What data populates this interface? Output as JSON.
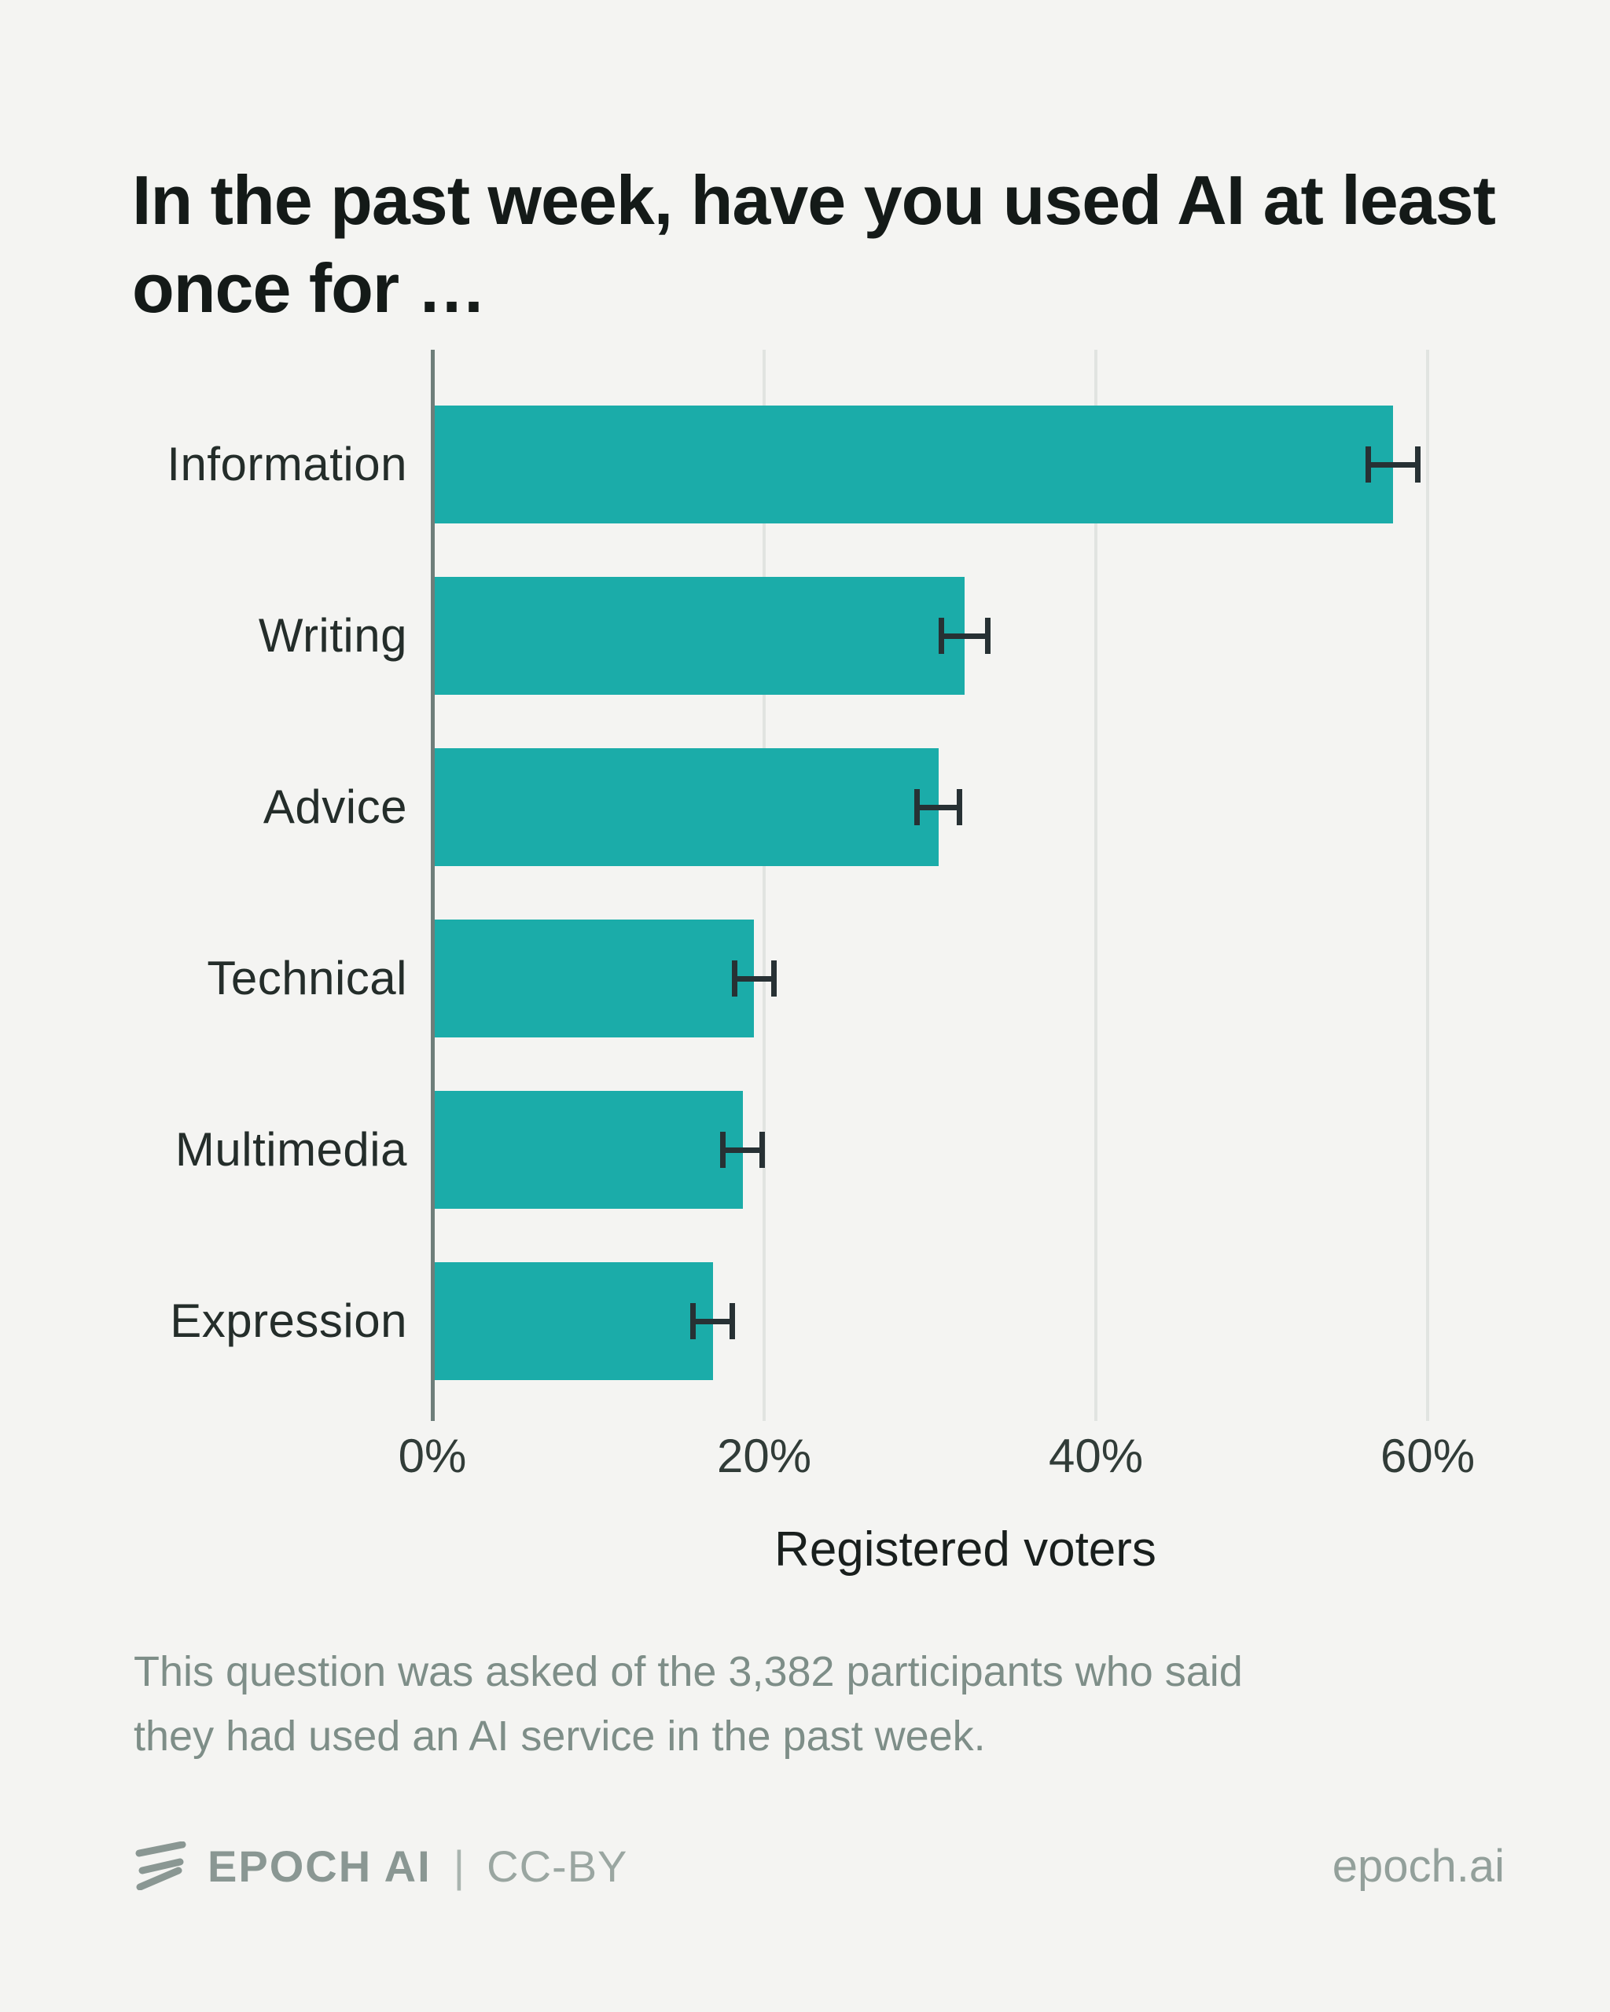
{
  "title": {
    "line1": "In the past week, have you used AI at least",
    "line2": "once for …"
  },
  "chart_data": {
    "type": "bar",
    "orientation": "horizontal",
    "title": "In the past week, have you used AI at least once for …",
    "categories": [
      "Information",
      "Writing",
      "Advice",
      "Technical",
      "Multimedia",
      "Expression"
    ],
    "values": [
      57.9,
      32.1,
      30.5,
      19.4,
      18.7,
      16.9
    ],
    "error_margins": [
      1.5,
      1.4,
      1.3,
      1.2,
      1.2,
      1.2
    ],
    "xlabel": "Registered voters",
    "xlim": [
      0,
      66.3
    ],
    "xticks": {
      "values": [
        0,
        20,
        40,
        60
      ],
      "labels": [
        "0%",
        "20%",
        "40%",
        "60%"
      ]
    },
    "grid": "vertical-gridlines",
    "legend": "none"
  },
  "footnote": {
    "line1": "This question was asked of the 3,382 participants who said",
    "line2": "they had used an AI service in the past week."
  },
  "footer": {
    "brand": "EPOCH AI",
    "divider": "|",
    "license": "CC-BY",
    "site": "epoch.ai"
  },
  "colors": {
    "background": "#F4F4F2",
    "bar_teal": "#1BACA9",
    "error_bar": "#273134",
    "axis_spine": "#6E7E7A",
    "gridline": "#E1E4E1",
    "title_text": "#141A18",
    "category_text": "#242D2A",
    "tick_text": "#313C38",
    "footnote_text": "#7E8E88",
    "footer_text": "#8A9793"
  }
}
